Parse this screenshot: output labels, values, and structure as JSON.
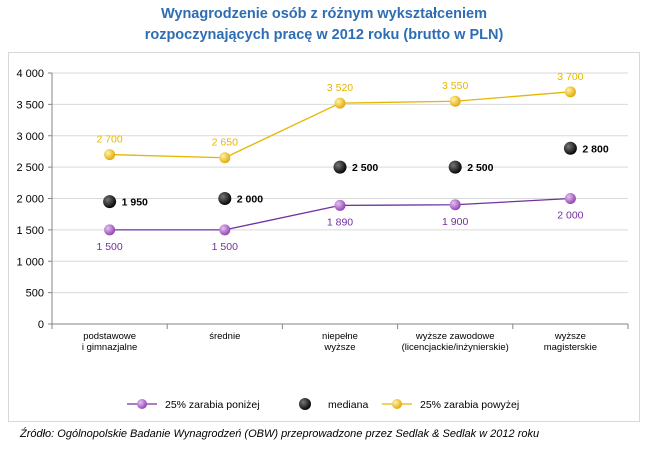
{
  "title_line1": "Wynagrodzenie osób z różnym wykształceniem",
  "title_line2": "rozpoczynających pracę w 2012 roku (brutto w PLN)",
  "source": "Źródło: Ogólnopolskie Badanie Wynagrodzeń (OBW) przeprowadzone przez Sedlak & Sedlak w 2012 roku",
  "chart_data": {
    "type": "line",
    "title": "Wynagrodzenie osób z różnym wykształceniem rozpoczynających pracę w 2012 roku (brutto w PLN)",
    "categories": [
      [
        "podstawowe",
        "i gimnazjalne"
      ],
      [
        "średnie"
      ],
      [
        "niepełne",
        "wyższe"
      ],
      [
        "wyższe zawodowe",
        "(licencjackie/inżynierskie)"
      ],
      [
        "wyższe",
        "magisterskie"
      ]
    ],
    "ylim": [
      0,
      4000
    ],
    "yticks": [
      "0",
      "500",
      "1 000",
      "1 500",
      "2 000",
      "2 500",
      "3 000",
      "3 500",
      "4 000"
    ],
    "ytick_values": [
      0,
      500,
      1000,
      1500,
      2000,
      2500,
      3000,
      3500,
      4000
    ],
    "grid": true,
    "legend_position": "bottom",
    "series": [
      {
        "name": "25% zarabia poniżej",
        "values": [
          1500,
          1500,
          1890,
          1900,
          2000
        ],
        "labels": [
          "1 500",
          "1 500",
          "1 890",
          "1 900",
          "2 000"
        ],
        "color": "#7030a0",
        "marker": "#a561c4",
        "line": true,
        "label_position": "below"
      },
      {
        "name": "mediana",
        "values": [
          1950,
          2000,
          2500,
          2500,
          2800
        ],
        "labels": [
          "1 950",
          "2 000",
          "2 500",
          "2 500",
          "2 800"
        ],
        "color": "#000000",
        "marker": "#1a1a1a",
        "line": false,
        "label_position": "right"
      },
      {
        "name": "25% zarabia powyżej",
        "values": [
          2700,
          2650,
          3520,
          3550,
          3700
        ],
        "labels": [
          "2 700",
          "2 650",
          "3 520",
          "3 550",
          "3 700"
        ],
        "color": "#e5b700",
        "marker": "#f2c200",
        "line": true,
        "label_position": "above"
      }
    ]
  }
}
